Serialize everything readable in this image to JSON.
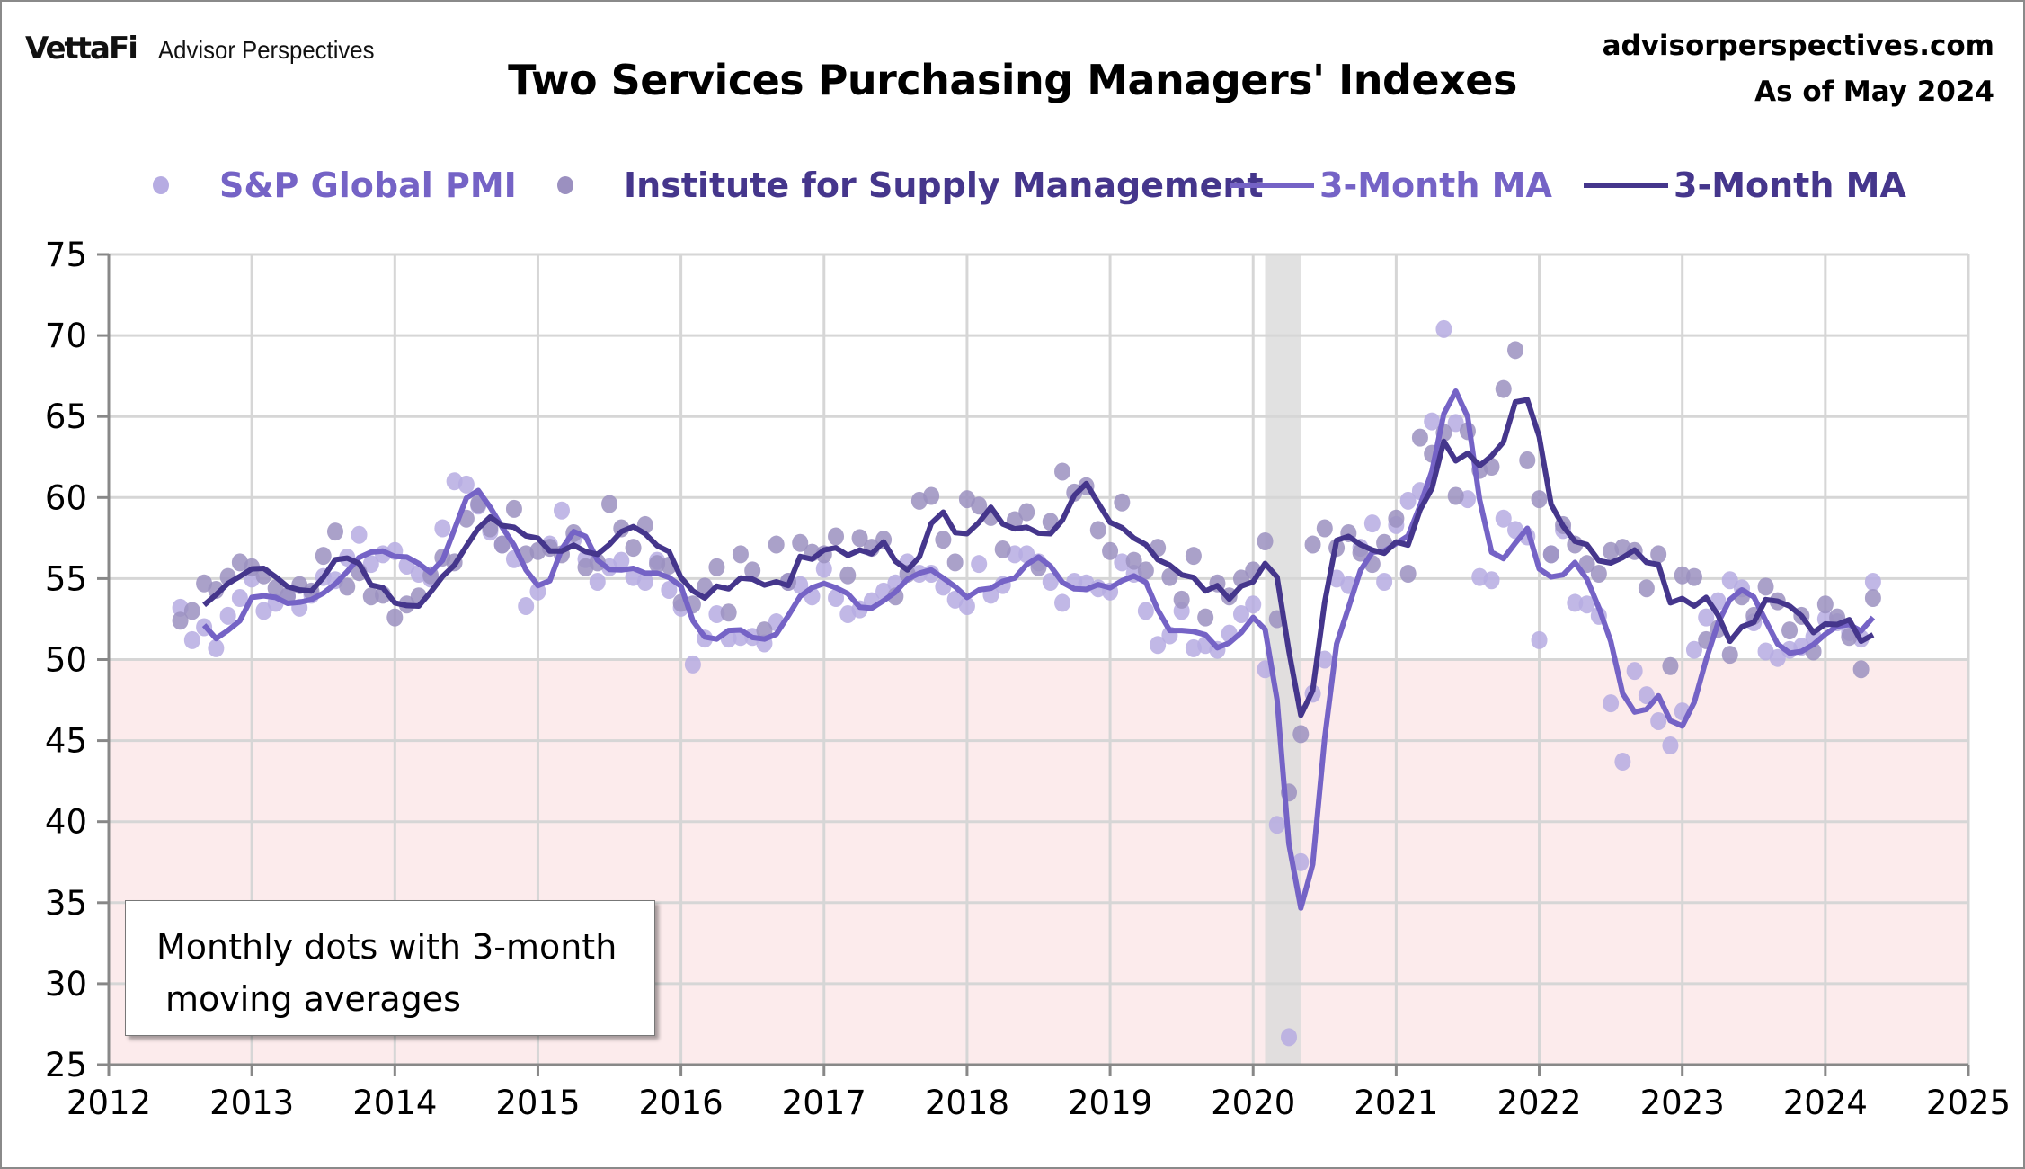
{
  "header": {
    "logo_brand": "VettaFi",
    "logo_sub": "Advisor Perspectives",
    "title": "Two Services Purchasing Managers' Indexes",
    "site": "advisorperspectives.com",
    "as_of": "As of May 2024"
  },
  "legend": [
    {
      "label": "S&P Global PMI",
      "kind": "dot",
      "color": "#b6ace2",
      "text_color": "#7563c6"
    },
    {
      "label": "Institute for Supply Management",
      "kind": "dot",
      "color": "#9b90c0",
      "text_color": "#45368c"
    },
    {
      "label": "3-Month MA",
      "kind": "line",
      "color": "#7563c6",
      "text_color": "#7563c6"
    },
    {
      "label": "3-Month MA",
      "kind": "line",
      "color": "#45368c",
      "text_color": "#45368c"
    }
  ],
  "annotation": {
    "line1": "Monthly dots with 3-month",
    "line2": "moving averages"
  },
  "chart_data": {
    "type": "scatter",
    "title": "Two Services Purchasing Managers' Indexes",
    "xlim": [
      2012,
      2025
    ],
    "ylim": [
      25,
      75
    ],
    "x_ticks": [
      "2012",
      "2013",
      "2014",
      "2015",
      "2016",
      "2017",
      "2018",
      "2019",
      "2020",
      "2021",
      "2022",
      "2023",
      "2024",
      "2025"
    ],
    "y_ticks": [
      "25",
      "30",
      "35",
      "40",
      "45",
      "50",
      "55",
      "60",
      "65",
      "70",
      "75"
    ],
    "grid": true,
    "legend_position": "top",
    "first_month": "2012-07",
    "last_month": "2024-05",
    "contraction_threshold": 50,
    "contraction_fill": "#fcebec",
    "recession_shading": {
      "start": "2020-02",
      "end": "2020-04",
      "color": "#dcdcdc"
    },
    "moving_average_window": 3,
    "series": [
      {
        "name": "S&P Global PMI",
        "dot_color": "#b6ace2",
        "ma_color": "#7563c6",
        "values": [
          53.2,
          51.2,
          52.0,
          50.7,
          52.7,
          53.8,
          55.0,
          53.0,
          53.5,
          53.9,
          53.2,
          54.0,
          55.1,
          54.9,
          56.3,
          57.7,
          55.9,
          56.5,
          56.7,
          55.8,
          55.3,
          55.0,
          58.1,
          61.0,
          60.8,
          59.5,
          57.9,
          57.1,
          56.2,
          53.3,
          54.2,
          57.1,
          59.2,
          57.4,
          56.2,
          54.8,
          55.7,
          56.1,
          55.1,
          54.8,
          56.1,
          54.3,
          53.2,
          49.7,
          51.3,
          52.8,
          51.3,
          51.4,
          51.4,
          51.0,
          52.3,
          54.8,
          54.6,
          53.9,
          55.6,
          53.8,
          52.8,
          53.1,
          53.6,
          54.2,
          54.7,
          56.0,
          55.3,
          55.3,
          54.5,
          53.7,
          53.3,
          55.9,
          54.0,
          54.6,
          56.5,
          56.5,
          56.0,
          54.8,
          53.5,
          54.8,
          54.7,
          54.4,
          54.2,
          56.0,
          55.3,
          53.0,
          50.9,
          51.5,
          53.0,
          50.7,
          50.9,
          50.6,
          51.6,
          52.8,
          53.4,
          49.4,
          39.8,
          26.7,
          37.5,
          47.9,
          50.0,
          55.0,
          54.6,
          56.9,
          58.4,
          54.8,
          58.3,
          59.8,
          60.4,
          64.7,
          70.4,
          64.6,
          59.9,
          55.1,
          54.9,
          58.7,
          58.0,
          57.6,
          51.2,
          56.5,
          58.0,
          53.5,
          53.4,
          52.7,
          47.3,
          43.7,
          49.3,
          47.8,
          46.2,
          44.7,
          46.8,
          50.6,
          52.6,
          53.6,
          54.9,
          54.4,
          52.3,
          50.5,
          50.1,
          50.6,
          50.8,
          51.4,
          52.5,
          52.3,
          51.7,
          51.3,
          54.8
        ]
      },
      {
        "name": "Institute for Supply Management",
        "dot_color": "#9b90c0",
        "ma_color": "#45368c",
        "values": [
          52.4,
          53.0,
          54.7,
          54.3,
          55.1,
          56.0,
          55.7,
          55.2,
          54.4,
          53.9,
          54.6,
          54.2,
          56.4,
          57.9,
          54.5,
          55.4,
          53.9,
          54.0,
          52.6,
          53.4,
          53.9,
          55.2,
          56.3,
          56.0,
          58.7,
          59.6,
          58.1,
          57.1,
          59.3,
          56.5,
          56.7,
          56.9,
          56.5,
          57.8,
          55.7,
          56.0,
          59.6,
          58.1,
          56.9,
          58.3,
          55.9,
          55.8,
          53.5,
          53.4,
          54.5,
          55.7,
          52.9,
          56.5,
          55.5,
          51.8,
          57.1,
          54.8,
          57.2,
          56.6,
          56.5,
          57.6,
          55.2,
          57.5,
          56.9,
          57.4,
          53.9,
          55.3,
          59.8,
          60.1,
          57.4,
          56.0,
          59.9,
          59.5,
          58.8,
          56.8,
          58.6,
          59.1,
          55.7,
          58.5,
          61.6,
          60.3,
          60.7,
          58.0,
          56.7,
          59.7,
          56.1,
          55.5,
          56.9,
          55.1,
          53.7,
          56.4,
          52.6,
          54.7,
          53.9,
          55.0,
          55.5,
          57.3,
          52.5,
          41.8,
          45.4,
          57.1,
          58.1,
          56.9,
          57.8,
          56.6,
          55.9,
          57.2,
          58.7,
          55.3,
          63.7,
          62.7,
          64.0,
          60.1,
          64.1,
          61.7,
          61.9,
          66.7,
          69.1,
          62.3,
          59.9,
          56.5,
          58.3,
          57.1,
          55.9,
          55.3,
          56.7,
          56.9,
          56.7,
          54.4,
          56.5,
          49.6,
          55.2,
          55.1,
          51.2,
          51.9,
          50.3,
          53.9,
          52.7,
          54.5,
          53.6,
          51.8,
          52.7,
          50.5,
          53.4,
          52.6,
          51.4,
          49.4,
          53.8
        ]
      }
    ]
  }
}
